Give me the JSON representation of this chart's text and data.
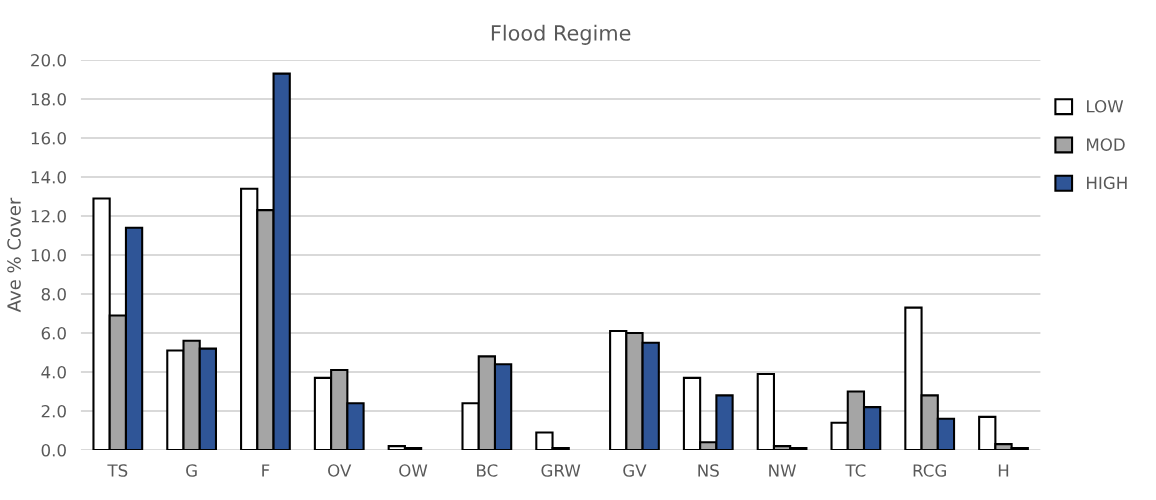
{
  "chart_data": {
    "type": "bar",
    "title": "Flood Regime",
    "ylabel": "Ave % Cover",
    "categories": [
      "TS",
      "G",
      "F",
      "OV",
      "OW",
      "BC",
      "GRW",
      "GV",
      "NS",
      "NW",
      "TC",
      "RCG",
      "H"
    ],
    "series": [
      {
        "name": "LOW",
        "color": "#ffffff",
        "values": [
          12.9,
          5.1,
          13.4,
          3.7,
          0.2,
          2.4,
          0.9,
          6.1,
          3.7,
          3.9,
          1.4,
          7.3,
          1.7
        ]
      },
      {
        "name": "MOD",
        "color": "#a5a5a5",
        "values": [
          6.9,
          5.6,
          12.3,
          4.1,
          0.1,
          4.8,
          0.1,
          6.0,
          0.4,
          0.2,
          3.0,
          2.8,
          0.3
        ]
      },
      {
        "name": "HIGH",
        "color": "#2f5597",
        "values": [
          11.4,
          5.2,
          19.3,
          2.4,
          0.0,
          4.4,
          0.0,
          5.5,
          2.8,
          0.1,
          2.2,
          1.6,
          0.1
        ]
      }
    ],
    "ylim": [
      0,
      20
    ],
    "yticks": [
      {
        "value": 0,
        "label": "0.0"
      },
      {
        "value": 2,
        "label": "2.0"
      },
      {
        "value": 4,
        "label": "4.0"
      },
      {
        "value": 6,
        "label": "6.0"
      },
      {
        "value": 8,
        "label": "8.0"
      },
      {
        "value": 10,
        "label": "10.0"
      },
      {
        "value": 12,
        "label": "12.0"
      },
      {
        "value": 14,
        "label": "14.0"
      },
      {
        "value": 16,
        "label": "16.0"
      },
      {
        "value": 18,
        "label": "18.0"
      },
      {
        "value": 20,
        "label": "20.0"
      }
    ],
    "grid": "y",
    "legend": "right"
  }
}
